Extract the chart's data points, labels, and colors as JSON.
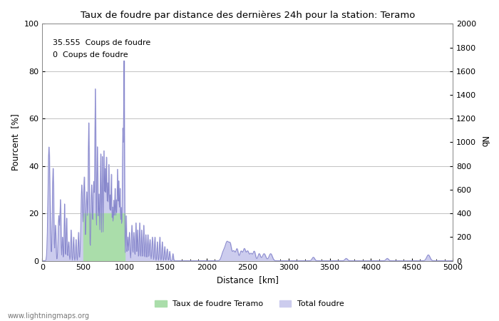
{
  "title": "Taux de foudre par distance des dernières 24h pour la station: Teramo",
  "xlabel": "Distance  [km]",
  "ylabel_left": "Pourcent  [%]",
  "ylabel_right": "Nb",
  "annotation_line1": "35.555  Coups de foudre",
  "annotation_line2": "0  Coups de foudre",
  "legend_label1": "Taux de foudre Teramo",
  "legend_label2": "Total foudre",
  "watermark": "www.lightningmaps.org",
  "xlim": [
    0,
    5000
  ],
  "ylim_left": [
    0,
    100
  ],
  "ylim_right": [
    0,
    2000
  ],
  "yticks_left": [
    0,
    20,
    40,
    60,
    80,
    100
  ],
  "yticks_right": [
    0,
    200,
    400,
    600,
    800,
    1000,
    1200,
    1400,
    1600,
    1800,
    2000
  ],
  "xticks": [
    0,
    500,
    1000,
    1500,
    2000,
    2500,
    3000,
    3500,
    4000,
    4500,
    5000
  ],
  "line_color": "#8888cc",
  "fill_green_color": "#aaddaa",
  "fill_blue_color": "#ccccee",
  "background_color": "#ffffff",
  "grid_color": "#aaaaaa",
  "green_fill_x_start": 500,
  "green_fill_x_end": 1000,
  "green_fill_y": 20
}
